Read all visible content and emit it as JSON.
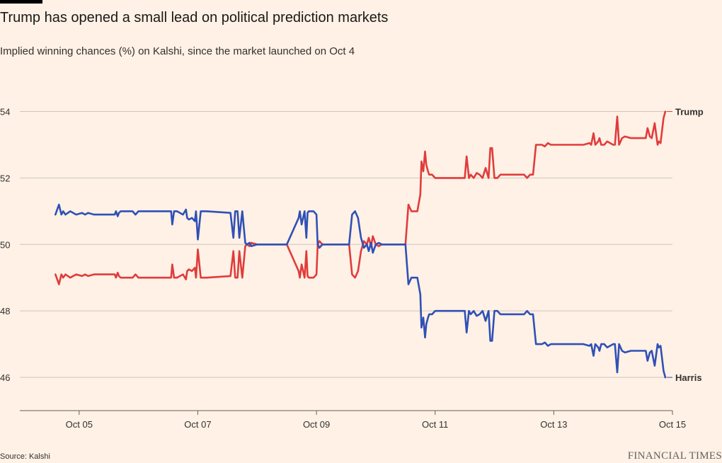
{
  "title": "Trump has opened a small lead on political prediction markets",
  "subtitle": "Implied winning chances (%) on Kalshi, since the market launched on Oct 4",
  "source": "Source: Kalshi",
  "brand": "FINANCIAL TIMES",
  "chart_data": {
    "type": "line",
    "title": "Trump has opened a small lead on political prediction markets",
    "subtitle": "Implied winning chances (%) on Kalshi, since the market launched on Oct 4",
    "xlabel": "",
    "ylabel": "",
    "x_unit": "days (Oct)",
    "xlim": [
      4,
      15
    ],
    "ylim": [
      45,
      54.8
    ],
    "xticks": [
      5,
      7,
      9,
      11,
      13,
      15
    ],
    "xtick_labels": [
      "Oct 05",
      "Oct 07",
      "Oct 09",
      "Oct 11",
      "Oct 13",
      "Oct 15"
    ],
    "yticks": [
      46,
      48,
      50,
      52,
      54
    ],
    "ytick_labels": [
      "46",
      "48",
      "50",
      "52",
      "54"
    ],
    "grid": "horizontal",
    "legend": "direct labels at line ends",
    "series": [
      {
        "name": "Trump",
        "color": "#e03c3c",
        "x": [
          4.6,
          4.66,
          4.7,
          4.73,
          4.77,
          4.85,
          4.95,
          5.05,
          5.1,
          5.15,
          5.25,
          5.6,
          5.62,
          5.65,
          5.67,
          5.7,
          5.75,
          5.9,
          5.95,
          6.0,
          6.05,
          6.55,
          6.57,
          6.6,
          6.63,
          6.65,
          6.75,
          6.8,
          6.82,
          6.85,
          6.9,
          6.95,
          6.97,
          7.0,
          7.05,
          7.07,
          7.1,
          7.12,
          7.15,
          7.55,
          7.6,
          7.63,
          7.67,
          7.7,
          7.75,
          7.8,
          7.83,
          7.87,
          7.9,
          8.0,
          8.05,
          8.1,
          8.15,
          8.2,
          8.25,
          8.3,
          8.35,
          8.4,
          8.45,
          8.5,
          8.7,
          8.72,
          8.75,
          8.8,
          8.83,
          8.85,
          8.87,
          8.9,
          8.95,
          9.0,
          9.02,
          9.05,
          9.1,
          9.2,
          9.3,
          9.4,
          9.5,
          9.55,
          9.6,
          9.65,
          9.7,
          9.75,
          9.8,
          9.85,
          9.88,
          9.92,
          9.95,
          10.0,
          10.05,
          10.1,
          10.5,
          10.55,
          10.6,
          10.65,
          10.7,
          10.75,
          10.77,
          10.8,
          10.83,
          10.85,
          10.88,
          10.9,
          10.95,
          11.0,
          11.05,
          11.1,
          11.5,
          11.53,
          11.57,
          11.6,
          11.65,
          11.7,
          11.75,
          11.8,
          11.85,
          11.9,
          11.93,
          11.96,
          12.0,
          12.05,
          12.1,
          12.5,
          12.55,
          12.6,
          12.65,
          12.7,
          12.73,
          12.8,
          12.85,
          12.9,
          12.95,
          13.0,
          13.5,
          13.6,
          13.63,
          13.67,
          13.7,
          13.75,
          13.77,
          13.8,
          13.85,
          13.9,
          14.0,
          14.03,
          14.07,
          14.1,
          14.15,
          14.2,
          14.3,
          14.5,
          14.55,
          14.58,
          14.62,
          14.65,
          14.7,
          14.75,
          14.77,
          14.8,
          14.85,
          14.88
        ],
        "y": [
          49.1,
          48.8,
          49.1,
          49.0,
          49.1,
          49.0,
          49.1,
          49.05,
          49.1,
          49.05,
          49.1,
          49.1,
          49.0,
          49.15,
          49.05,
          49.0,
          49.0,
          49.0,
          49.1,
          49.0,
          49.0,
          49.0,
          49.4,
          49.0,
          49.0,
          49.0,
          49.1,
          48.95,
          49.2,
          49.25,
          49.2,
          49.3,
          49.0,
          49.85,
          49.0,
          49.0,
          49.0,
          49.0,
          49.0,
          49.05,
          49.8,
          49.0,
          49.0,
          49.8,
          49.0,
          49.95,
          50.0,
          49.95,
          50.05,
          50.0,
          50.0,
          50.0,
          50.0,
          50.0,
          50.0,
          50.0,
          50.0,
          50.0,
          50.0,
          50.0,
          49.2,
          49.0,
          49.4,
          49.0,
          49.8,
          49.05,
          49.0,
          49.0,
          49.0,
          49.1,
          50.0,
          50.1,
          50.0,
          50.0,
          50.0,
          50.0,
          50.0,
          50.0,
          49.1,
          49.0,
          49.2,
          49.8,
          50.1,
          50.0,
          50.2,
          49.95,
          50.25,
          50.0,
          49.95,
          50.0,
          50.0,
          51.2,
          51.0,
          51.0,
          51.0,
          51.5,
          52.5,
          52.2,
          52.8,
          52.4,
          52.2,
          52.1,
          52.1,
          52.0,
          52.0,
          52.0,
          52.0,
          52.65,
          52.0,
          52.1,
          52.0,
          52.15,
          52.1,
          52.0,
          52.3,
          52.0,
          52.9,
          52.9,
          52.0,
          52.0,
          52.1,
          52.1,
          52.0,
          52.1,
          52.1,
          53.0,
          53.0,
          53.0,
          52.95,
          53.05,
          53.0,
          53.0,
          53.0,
          53.05,
          53.0,
          53.35,
          53.0,
          53.1,
          53.2,
          53.0,
          53.0,
          53.1,
          53.0,
          53.0,
          53.85,
          53.0,
          53.2,
          53.25,
          53.2,
          53.2,
          53.2,
          53.5,
          53.25,
          53.2,
          53.65,
          53.0,
          53.1,
          53.05,
          53.8,
          54.0
        ]
      },
      {
        "name": "Harris",
        "color": "#2f50b6",
        "x": [
          4.6,
          4.66,
          4.7,
          4.73,
          4.77,
          4.85,
          4.95,
          5.05,
          5.1,
          5.15,
          5.25,
          5.6,
          5.62,
          5.65,
          5.67,
          5.7,
          5.75,
          5.9,
          5.95,
          6.0,
          6.05,
          6.55,
          6.57,
          6.6,
          6.63,
          6.65,
          6.75,
          6.8,
          6.82,
          6.85,
          6.9,
          6.95,
          6.97,
          7.0,
          7.05,
          7.07,
          7.1,
          7.12,
          7.15,
          7.55,
          7.6,
          7.63,
          7.67,
          7.7,
          7.75,
          7.8,
          7.83,
          7.87,
          7.9,
          8.0,
          8.05,
          8.1,
          8.15,
          8.2,
          8.25,
          8.3,
          8.35,
          8.4,
          8.45,
          8.5,
          8.7,
          8.72,
          8.75,
          8.8,
          8.83,
          8.85,
          8.87,
          8.9,
          8.95,
          9.0,
          9.02,
          9.05,
          9.1,
          9.2,
          9.3,
          9.4,
          9.5,
          9.55,
          9.6,
          9.65,
          9.7,
          9.75,
          9.8,
          9.85,
          9.88,
          9.92,
          9.95,
          10.0,
          10.05,
          10.1,
          10.5,
          10.55,
          10.6,
          10.65,
          10.7,
          10.75,
          10.77,
          10.8,
          10.83,
          10.85,
          10.88,
          10.9,
          10.95,
          11.0,
          11.05,
          11.1,
          11.5,
          11.53,
          11.57,
          11.6,
          11.65,
          11.7,
          11.75,
          11.8,
          11.85,
          11.9,
          11.93,
          11.96,
          12.0,
          12.05,
          12.1,
          12.5,
          12.55,
          12.6,
          12.65,
          12.7,
          12.73,
          12.8,
          12.85,
          12.9,
          12.95,
          13.0,
          13.5,
          13.6,
          13.63,
          13.67,
          13.7,
          13.75,
          13.77,
          13.8,
          13.85,
          13.9,
          14.0,
          14.03,
          14.07,
          14.1,
          14.15,
          14.2,
          14.3,
          14.5,
          14.55,
          14.58,
          14.62,
          14.65,
          14.7,
          14.75,
          14.77,
          14.8,
          14.85,
          14.88
        ],
        "y": [
          50.9,
          51.2,
          50.9,
          51.0,
          50.9,
          51.0,
          50.9,
          50.95,
          50.9,
          50.95,
          50.9,
          50.9,
          51.0,
          50.85,
          50.95,
          51.0,
          51.0,
          51.0,
          50.9,
          51.0,
          51.0,
          51.0,
          50.6,
          51.0,
          51.0,
          51.0,
          50.9,
          51.05,
          50.8,
          50.75,
          50.8,
          50.7,
          51.0,
          50.15,
          51.0,
          51.0,
          51.0,
          51.0,
          51.0,
          50.95,
          50.2,
          51.0,
          51.0,
          50.2,
          51.0,
          50.05,
          50.0,
          50.05,
          49.95,
          50.0,
          50.0,
          50.0,
          50.0,
          50.0,
          50.0,
          50.0,
          50.0,
          50.0,
          50.0,
          50.0,
          50.8,
          51.0,
          50.6,
          51.0,
          50.2,
          50.95,
          51.0,
          51.0,
          51.0,
          50.9,
          50.0,
          49.9,
          50.0,
          50.0,
          50.0,
          50.0,
          50.0,
          50.0,
          50.9,
          51.0,
          50.8,
          50.2,
          49.9,
          50.0,
          49.8,
          50.05,
          49.75,
          50.0,
          50.05,
          50.0,
          50.0,
          48.8,
          49.0,
          49.0,
          49.0,
          48.5,
          47.5,
          47.8,
          47.2,
          47.6,
          47.8,
          47.9,
          47.9,
          48.0,
          48.0,
          48.0,
          48.0,
          47.35,
          48.0,
          47.9,
          48.0,
          47.85,
          47.9,
          48.0,
          47.7,
          48.0,
          47.1,
          47.1,
          48.0,
          48.0,
          47.9,
          47.9,
          48.0,
          47.9,
          47.9,
          47.0,
          47.0,
          47.0,
          47.05,
          46.95,
          47.0,
          47.0,
          47.0,
          46.95,
          47.0,
          46.65,
          47.0,
          46.9,
          46.8,
          47.0,
          47.0,
          46.9,
          47.0,
          47.0,
          46.15,
          47.0,
          46.8,
          46.75,
          46.8,
          46.8,
          46.8,
          46.5,
          46.75,
          46.8,
          46.35,
          47.0,
          46.9,
          46.95,
          46.2,
          46.0
        ]
      }
    ]
  }
}
